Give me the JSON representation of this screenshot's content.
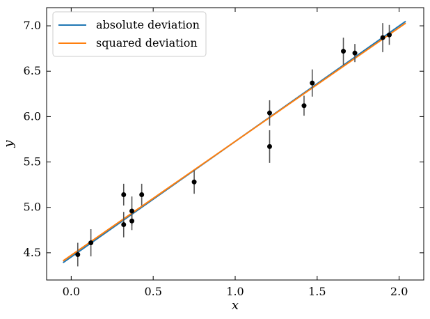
{
  "chart_data": {
    "type": "scatter",
    "xlabel": "x",
    "ylabel": "y",
    "xlim": [
      -0.15,
      2.15
    ],
    "ylim": [
      4.2,
      7.2
    ],
    "x_ticks": [
      0.0,
      0.5,
      1.0,
      1.5,
      2.0
    ],
    "y_ticks": [
      4.5,
      5.0,
      5.5,
      6.0,
      6.5,
      7.0
    ],
    "x_tick_labels": [
      "0.0",
      "0.5",
      "1.0",
      "1.5",
      "2.0"
    ],
    "y_tick_labels": [
      "4.5",
      "5.0",
      "5.5",
      "6.0",
      "6.5",
      "7.0"
    ],
    "grid": false,
    "legend_position": "top-left",
    "points": [
      {
        "x": 0.04,
        "y": 4.48,
        "err": 0.13
      },
      {
        "x": 0.12,
        "y": 4.61,
        "err": 0.15
      },
      {
        "x": 0.32,
        "y": 5.14,
        "err": 0.12
      },
      {
        "x": 0.32,
        "y": 4.81,
        "err": 0.14
      },
      {
        "x": 0.37,
        "y": 4.96,
        "err": 0.16
      },
      {
        "x": 0.37,
        "y": 4.85,
        "err": 0.1
      },
      {
        "x": 0.43,
        "y": 5.14,
        "err": 0.12
      },
      {
        "x": 0.75,
        "y": 5.28,
        "err": 0.13
      },
      {
        "x": 1.21,
        "y": 6.04,
        "err": 0.14
      },
      {
        "x": 1.21,
        "y": 5.67,
        "err": 0.18
      },
      {
        "x": 1.42,
        "y": 6.12,
        "err": 0.11
      },
      {
        "x": 1.47,
        "y": 6.37,
        "err": 0.15
      },
      {
        "x": 1.66,
        "y": 6.72,
        "err": 0.15
      },
      {
        "x": 1.73,
        "y": 6.7,
        "err": 0.1
      },
      {
        "x": 1.9,
        "y": 6.87,
        "err": 0.16
      },
      {
        "x": 1.94,
        "y": 6.9,
        "err": 0.11
      }
    ],
    "series": [
      {
        "name": "absolute deviation",
        "color": "#1f77b4",
        "x": [
          -0.05,
          2.04
        ],
        "y": [
          4.39,
          7.05
        ]
      },
      {
        "name": "squared deviation",
        "color": "#ff7f0e",
        "x": [
          -0.05,
          2.04
        ],
        "y": [
          4.41,
          7.03
        ]
      }
    ],
    "marker_color": "#000000",
    "errorbar_color": "#555555"
  }
}
